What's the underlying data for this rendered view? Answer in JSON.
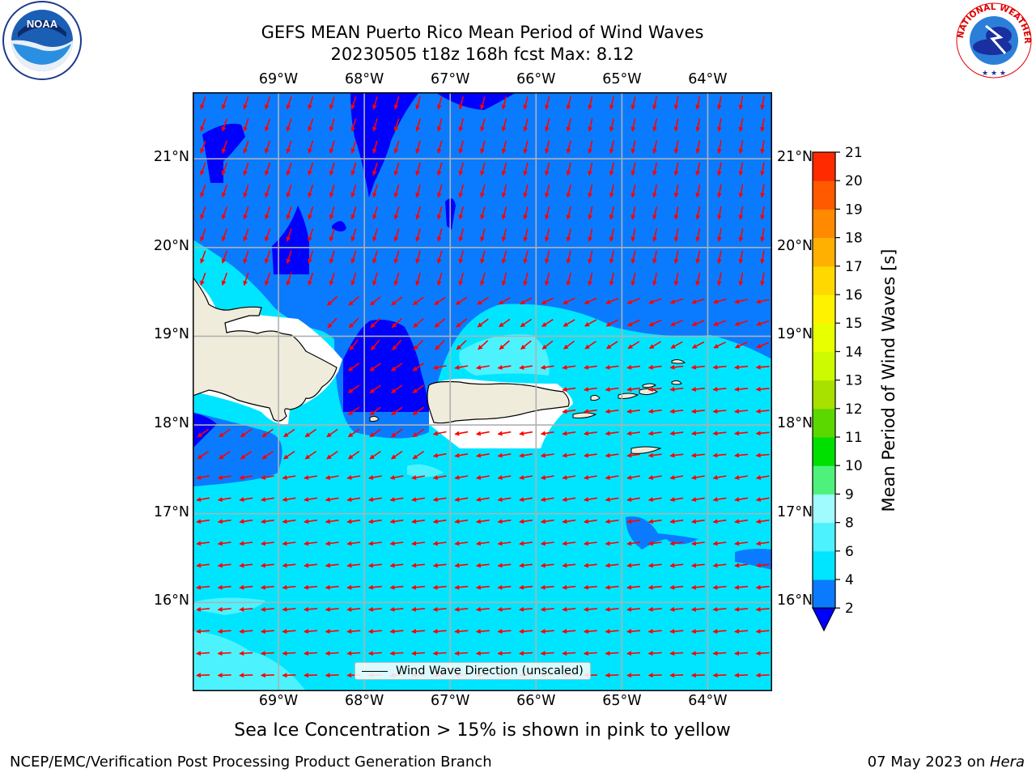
{
  "title": {
    "line1": "GEFS MEAN Puerto Rico Mean Period of Wind Waves",
    "line2": "20230505 t18z 168h fcst   Max: 8.12"
  },
  "logos": {
    "left": {
      "text": "NOAA",
      "icon": "noaa-logo"
    },
    "right": {
      "text": "NATIONAL WEATHER SERVICE",
      "icon": "nws-logo"
    }
  },
  "map": {
    "lon_labels": [
      "69°W",
      "68°W",
      "67°W",
      "66°W",
      "65°W",
      "64°W"
    ],
    "lat_labels": [
      "21°N",
      "20°N",
      "19°N",
      "18°N",
      "17°N",
      "16°N"
    ],
    "lon_range": [
      -70.0,
      -63.25
    ],
    "lat_range": [
      15.0,
      21.75
    ],
    "grid": true,
    "arrow_color": "#ff0000",
    "land_color": "#efecdc",
    "max_period": 8.12
  },
  "legend": {
    "label": "Wind Wave Direction (unscaled)"
  },
  "colorbar": {
    "label": "Mean Period of Wind Waves [s]",
    "ticks": [
      "2",
      "4",
      "6",
      "8",
      "9",
      "10",
      "11",
      "12",
      "13",
      "14",
      "15",
      "16",
      "17",
      "18",
      "19",
      "20",
      "21"
    ],
    "colors": [
      "#0a7bff",
      "#00e5ff",
      "#4df2ff",
      "#a0fbff",
      "#4ef27a",
      "#00e000",
      "#5ad800",
      "#a8e000",
      "#cdfa00",
      "#e8ff00",
      "#fff200",
      "#ffd800",
      "#ffb000",
      "#ff8a00",
      "#ff5a00",
      "#ff2a00"
    ],
    "under_color": "#0000ff"
  },
  "subnote": "Sea Ice Concentration > 15% is shown in pink to yellow",
  "footer": {
    "left": "NCEP/EMC/Verification Post Processing Product Generation Branch",
    "date": "07 May 2023 on ",
    "host": "Hera"
  }
}
